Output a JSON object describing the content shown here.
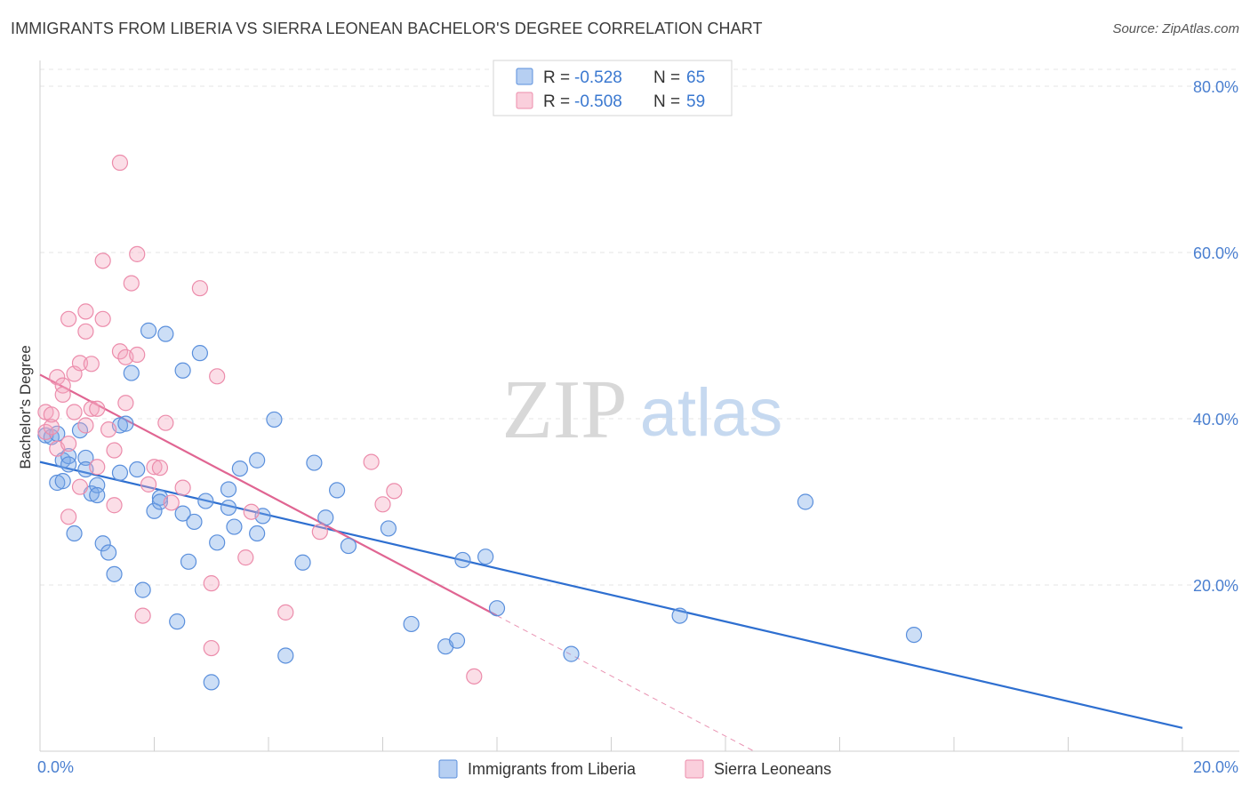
{
  "title": "IMMIGRANTS FROM LIBERIA VS SIERRA LEONEAN BACHELOR'S DEGREE CORRELATION CHART",
  "source": "Source: ZipAtlas.com",
  "watermark": {
    "zip": "ZIP",
    "atlas": "atlas"
  },
  "chart_data": {
    "type": "scatter",
    "xlabel": "",
    "ylabel": "Bachelor's Degree",
    "xlim": [
      0,
      20
    ],
    "ylim": [
      0,
      80
    ],
    "x_tick_labels": [
      "0.0%",
      "20.0%"
    ],
    "y_ticks": [
      20,
      40,
      60,
      80
    ],
    "y_tick_labels": [
      "20.0%",
      "40.0%",
      "60.0%",
      "80.0%"
    ],
    "legend": [
      {
        "r_label": "R = ",
        "r_value": "-0.528",
        "n_label": "N = ",
        "n_value": "65"
      },
      {
        "r_label": "R = ",
        "r_value": "-0.508",
        "n_label": "N = ",
        "n_value": "59"
      }
    ],
    "series": [
      {
        "name": "Immigrants from Liberia",
        "color": "#7aa8e8",
        "stroke": "#5a8fdc",
        "line_color": "#2e6fd0",
        "trend": {
          "x0": 0.0,
          "y0": 34.8,
          "x1": 20.0,
          "y1": 2.8,
          "dash_from": null
        },
        "points": [
          [
            0.1,
            38.0
          ],
          [
            0.2,
            37.8
          ],
          [
            0.3,
            38.2
          ],
          [
            0.3,
            32.3
          ],
          [
            0.4,
            32.5
          ],
          [
            0.4,
            35.0
          ],
          [
            0.5,
            35.5
          ],
          [
            0.5,
            34.5
          ],
          [
            0.6,
            26.2
          ],
          [
            0.7,
            38.6
          ],
          [
            0.8,
            35.3
          ],
          [
            0.8,
            33.9
          ],
          [
            0.9,
            31.0
          ],
          [
            1.0,
            32.0
          ],
          [
            1.0,
            30.8
          ],
          [
            1.1,
            25.0
          ],
          [
            1.2,
            23.9
          ],
          [
            1.3,
            21.3
          ],
          [
            1.4,
            33.5
          ],
          [
            1.4,
            39.2
          ],
          [
            1.5,
            39.4
          ],
          [
            1.6,
            45.5
          ],
          [
            1.7,
            33.9
          ],
          [
            1.8,
            19.4
          ],
          [
            1.9,
            50.6
          ],
          [
            2.0,
            28.9
          ],
          [
            2.1,
            30.5
          ],
          [
            2.1,
            30.0
          ],
          [
            2.2,
            50.2
          ],
          [
            2.4,
            15.6
          ],
          [
            2.5,
            45.8
          ],
          [
            2.5,
            28.6
          ],
          [
            2.6,
            22.8
          ],
          [
            2.7,
            27.6
          ],
          [
            2.8,
            47.9
          ],
          [
            2.9,
            30.1
          ],
          [
            3.0,
            8.3
          ],
          [
            3.1,
            25.1
          ],
          [
            3.3,
            29.3
          ],
          [
            3.3,
            31.5
          ],
          [
            3.4,
            27.0
          ],
          [
            3.5,
            34.0
          ],
          [
            3.8,
            26.2
          ],
          [
            3.8,
            35.0
          ],
          [
            3.9,
            28.3
          ],
          [
            4.1,
            39.9
          ],
          [
            4.3,
            11.5
          ],
          [
            4.6,
            22.7
          ],
          [
            4.8,
            34.7
          ],
          [
            5.0,
            28.1
          ],
          [
            5.2,
            31.4
          ],
          [
            5.4,
            24.7
          ],
          [
            6.1,
            26.8
          ],
          [
            6.5,
            15.3
          ],
          [
            7.1,
            12.6
          ],
          [
            7.3,
            13.3
          ],
          [
            7.4,
            23.0
          ],
          [
            7.8,
            23.4
          ],
          [
            8.0,
            17.2
          ],
          [
            9.3,
            11.7
          ],
          [
            11.2,
            16.3
          ],
          [
            13.4,
            30.0
          ],
          [
            15.3,
            14.0
          ]
        ]
      },
      {
        "name": "Sierra Leoneans",
        "color": "#f5a8c0",
        "stroke": "#ec8cab",
        "line_color": "#e06592",
        "trend": {
          "x0": 0.0,
          "y0": 45.3,
          "x1": 12.5,
          "y1": 0.0,
          "dash_from": 8.0
        },
        "points": [
          [
            0.1,
            40.8
          ],
          [
            0.1,
            38.4
          ],
          [
            0.2,
            39.0
          ],
          [
            0.2,
            40.5
          ],
          [
            0.3,
            45.0
          ],
          [
            0.3,
            36.4
          ],
          [
            0.4,
            44.0
          ],
          [
            0.4,
            42.9
          ],
          [
            0.5,
            37.0
          ],
          [
            0.5,
            28.2
          ],
          [
            0.5,
            52.0
          ],
          [
            0.6,
            40.8
          ],
          [
            0.6,
            45.4
          ],
          [
            0.7,
            31.8
          ],
          [
            0.7,
            46.7
          ],
          [
            0.8,
            50.5
          ],
          [
            0.8,
            52.9
          ],
          [
            0.8,
            39.2
          ],
          [
            0.9,
            41.2
          ],
          [
            0.9,
            46.6
          ],
          [
            1.0,
            41.2
          ],
          [
            1.1,
            52.0
          ],
          [
            1.0,
            34.2
          ],
          [
            1.1,
            59.0
          ],
          [
            1.2,
            38.7
          ],
          [
            1.3,
            29.6
          ],
          [
            1.3,
            36.2
          ],
          [
            1.4,
            70.8
          ],
          [
            1.4,
            48.1
          ],
          [
            1.5,
            41.9
          ],
          [
            1.5,
            47.4
          ],
          [
            1.6,
            56.3
          ],
          [
            1.7,
            59.8
          ],
          [
            1.7,
            47.7
          ],
          [
            1.8,
            16.3
          ],
          [
            1.9,
            32.1
          ],
          [
            2.0,
            34.2
          ],
          [
            2.1,
            34.1
          ],
          [
            2.2,
            39.5
          ],
          [
            2.3,
            29.9
          ],
          [
            2.5,
            31.7
          ],
          [
            2.8,
            55.7
          ],
          [
            3.0,
            12.4
          ],
          [
            3.0,
            20.2
          ],
          [
            3.1,
            45.1
          ],
          [
            3.6,
            23.3
          ],
          [
            3.7,
            28.8
          ],
          [
            4.3,
            16.7
          ],
          [
            4.9,
            26.4
          ],
          [
            5.8,
            34.8
          ],
          [
            6.0,
            29.7
          ],
          [
            6.2,
            31.3
          ],
          [
            7.6,
            9.0
          ]
        ]
      }
    ]
  }
}
